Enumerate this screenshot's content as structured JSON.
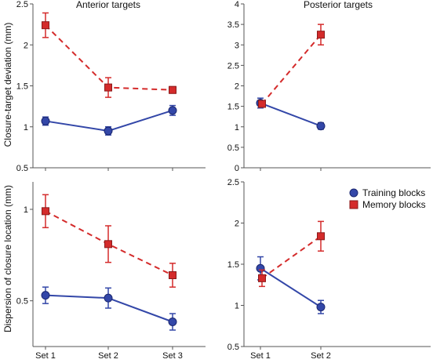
{
  "chart_data": [
    {
      "type": "line",
      "title": "Anterior targets",
      "ylabel": "Closure-target deviation (mm)",
      "categories": [
        "Set 1",
        "Set 2",
        "Set 3"
      ],
      "ylim": [
        0.5,
        2.5
      ],
      "yticks": [
        "0.5",
        "1",
        "1.5",
        "2",
        "2.5"
      ],
      "series": [
        {
          "name": "Training blocks",
          "values": [
            1.07,
            0.95,
            1.2
          ],
          "err": [
            0.05,
            0.05,
            0.06
          ]
        },
        {
          "name": "Memory blocks",
          "values": [
            2.24,
            1.48,
            1.45
          ],
          "err": [
            0.15,
            0.12,
            0.04
          ]
        }
      ]
    },
    {
      "type": "line",
      "title": "Posterior targets",
      "categories": [
        "Set 1",
        "Set 2"
      ],
      "ylim": [
        0,
        4
      ],
      "yticks": [
        "0",
        "0.5",
        "1",
        "1.5",
        "2",
        "2.5",
        "3",
        "3.5",
        "4"
      ],
      "series": [
        {
          "name": "Training blocks",
          "values": [
            1.58,
            1.02
          ],
          "err": [
            0.12,
            0.08
          ]
        },
        {
          "name": "Memory blocks",
          "values": [
            1.56,
            3.25
          ],
          "err": [
            0.05,
            0.25
          ]
        }
      ]
    },
    {
      "type": "line",
      "ylabel": "Dispersion of closure location (mm)",
      "categories": [
        "Set 1",
        "Set 2",
        "Set 3"
      ],
      "ylim": [
        0.25,
        1.15
      ],
      "yticks": [
        "0.5",
        "1"
      ],
      "series": [
        {
          "name": "Training blocks",
          "values": [
            0.53,
            0.515,
            0.385
          ],
          "err": [
            0.045,
            0.055,
            0.045
          ]
        },
        {
          "name": "Memory blocks",
          "values": [
            0.99,
            0.81,
            0.64
          ],
          "err": [
            0.09,
            0.1,
            0.065
          ]
        }
      ]
    },
    {
      "type": "line",
      "categories": [
        "Set 1",
        "Set 2"
      ],
      "ylim": [
        0.5,
        2.5
      ],
      "yticks": [
        "0.5",
        "1",
        "1.5",
        "2",
        "2.5"
      ],
      "series": [
        {
          "name": "Training blocks",
          "values": [
            1.45,
            0.98
          ],
          "err": [
            0.14,
            0.08
          ]
        },
        {
          "name": "Memory blocks",
          "values": [
            1.33,
            1.84
          ],
          "err": [
            0.1,
            0.18
          ]
        }
      ]
    }
  ],
  "legend": {
    "position": "top-right of lower-right panel",
    "items": [
      {
        "label": "Training blocks",
        "color": "#3347a8",
        "marker": "circle",
        "line": "solid"
      },
      {
        "label": "Memory blocks",
        "color": "#d42b2b",
        "marker": "square",
        "line": "dashed"
      }
    ]
  },
  "colors": {
    "training": "#3347a8",
    "memory": "#d42b2b",
    "axis": "#555555"
  }
}
